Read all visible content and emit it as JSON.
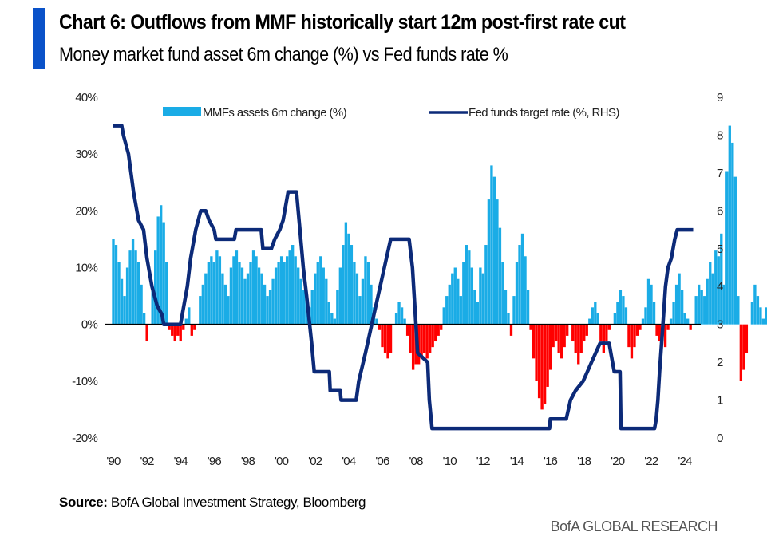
{
  "header": {
    "title": "Chart 6: Outflows from MMF historically start 12m post-first rate cut",
    "subtitle": "Money market fund asset 6m change (%) vs Fed funds rate %"
  },
  "footer": {
    "source_label": "Source:",
    "source_text": "BofA Global Investment Strategy, Bloomberg",
    "brand": "BofA GLOBAL RESEARCH"
  },
  "colors": {
    "accent": "#0a52c9",
    "bar_positive": "#1aace6",
    "bar_negative": "#ff0000",
    "line": "#0c2a78",
    "zero_line": "#000000"
  },
  "chart_data": {
    "type": "bar+line",
    "title": "Chart 6: Outflows from MMF historically start 12m post-first rate cut",
    "subtitle": "Money market fund asset 6m change (%) vs Fed funds rate %",
    "xlabel": "",
    "ylabel_left": "",
    "ylabel_right": "",
    "legend_position": "top",
    "grid": false,
    "x_range": [
      1990,
      2024.5
    ],
    "x_ticks": [
      "'90",
      "'92",
      "'94",
      "'96",
      "'98",
      "'00",
      "'02",
      "'04",
      "'06",
      "'08",
      "'10",
      "'12",
      "'14",
      "'16",
      "'18",
      "'20",
      "'22",
      "'24"
    ],
    "x_tick_values": [
      1990,
      1992,
      1994,
      1996,
      1998,
      2000,
      2002,
      2004,
      2006,
      2008,
      2010,
      2012,
      2014,
      2016,
      2018,
      2020,
      2022,
      2024
    ],
    "y_left": {
      "range": [
        -20,
        40
      ],
      "ticks": [
        40,
        30,
        20,
        10,
        0,
        -10,
        -20
      ],
      "tick_labels": [
        "40%",
        "30%",
        "20%",
        "10%",
        "0%",
        "-10%",
        "-20%"
      ]
    },
    "y_right": {
      "range": [
        0,
        9
      ],
      "ticks": [
        9,
        8,
        7,
        6,
        5,
        4,
        3,
        2,
        1,
        0
      ],
      "tick_labels": [
        "9",
        "8",
        "7",
        "6",
        "5",
        "4",
        "3",
        "2",
        "1",
        "0"
      ]
    },
    "series": [
      {
        "name": "MMFs assets 6m change (%)",
        "type": "bar",
        "axis": "left",
        "x_start": 1990.0,
        "x_step": 0.1667,
        "values": [
          15,
          14,
          11,
          8,
          5,
          10,
          13,
          15,
          13,
          11,
          7,
          2,
          -3,
          0,
          6,
          13,
          19,
          21,
          18,
          11,
          -1,
          -2,
          -3,
          -2,
          -3,
          -1,
          1,
          3,
          -2,
          -1,
          0,
          5,
          7,
          9,
          11,
          12,
          11,
          13,
          12,
          9,
          7,
          5,
          10,
          12,
          13,
          11,
          10,
          8,
          9,
          11,
          13,
          12,
          10,
          9,
          7,
          5,
          6,
          8,
          10,
          11,
          12,
          11,
          12,
          13,
          14,
          12,
          10,
          8,
          6,
          4,
          3,
          6,
          9,
          11,
          12,
          10,
          8,
          4,
          2,
          1,
          6,
          10,
          14,
          18,
          16,
          14,
          11,
          9,
          5,
          8,
          12,
          11,
          7,
          3,
          1,
          -1,
          -4,
          -5,
          -6,
          -5,
          0,
          2,
          4,
          3,
          1,
          -2,
          -5,
          -8,
          -7,
          -7,
          -6,
          -5,
          -6,
          -5,
          -4,
          -3,
          -2,
          -1,
          3,
          5,
          7,
          9,
          10,
          8,
          5,
          11,
          14,
          13,
          10,
          6,
          4,
          10,
          9,
          14,
          22,
          28,
          26,
          22,
          17,
          11,
          6,
          2,
          -2,
          5,
          11,
          14,
          16,
          12,
          6,
          -1,
          -6,
          -10,
          -13,
          -15,
          -14,
          -11,
          -8,
          -4,
          -3,
          -5,
          -6,
          -4,
          -2,
          0,
          -3,
          -5,
          -7,
          -5,
          -3,
          -2,
          1,
          3,
          4,
          2,
          -3,
          -5,
          -3,
          -1,
          0,
          2,
          4,
          6,
          5,
          3,
          -4,
          -6,
          -4,
          -2,
          -1,
          1,
          3,
          8,
          7,
          4,
          -2,
          -3,
          -2,
          -4,
          -1,
          1,
          4,
          7,
          9,
          6,
          2,
          1,
          -1,
          0,
          5,
          7,
          6,
          5,
          8,
          11,
          9,
          13,
          12,
          16,
          7,
          27,
          35,
          32,
          26,
          5,
          -10,
          -8,
          -5,
          0,
          4,
          7,
          5,
          3,
          1,
          3,
          2,
          -1,
          -3,
          -2,
          3,
          6,
          10,
          12,
          16,
          14,
          8,
          9
        ]
      },
      {
        "name": "Fed funds target rate (%, RHS)",
        "type": "line",
        "axis": "right",
        "points": [
          [
            1990.0,
            8.25
          ],
          [
            1990.5,
            8.25
          ],
          [
            1990.6,
            8.0
          ],
          [
            1990.9,
            7.5
          ],
          [
            1991.2,
            6.5
          ],
          [
            1991.5,
            5.75
          ],
          [
            1991.8,
            5.5
          ],
          [
            1992.0,
            4.75
          ],
          [
            1992.3,
            4.0
          ],
          [
            1992.6,
            3.5
          ],
          [
            1992.9,
            3.25
          ],
          [
            1993.0,
            3.0
          ],
          [
            1994.0,
            3.0
          ],
          [
            1994.2,
            3.5
          ],
          [
            1994.4,
            4.0
          ],
          [
            1994.6,
            4.75
          ],
          [
            1994.9,
            5.5
          ],
          [
            1995.2,
            6.0
          ],
          [
            1995.5,
            6.0
          ],
          [
            1995.7,
            5.75
          ],
          [
            1996.0,
            5.5
          ],
          [
            1996.1,
            5.25
          ],
          [
            1997.2,
            5.25
          ],
          [
            1997.3,
            5.5
          ],
          [
            1998.8,
            5.5
          ],
          [
            1998.9,
            5.0
          ],
          [
            1999.4,
            5.0
          ],
          [
            1999.6,
            5.25
          ],
          [
            1999.9,
            5.5
          ],
          [
            2000.1,
            5.75
          ],
          [
            2000.3,
            6.25
          ],
          [
            2000.4,
            6.5
          ],
          [
            2000.9,
            6.5
          ],
          [
            2001.1,
            5.5
          ],
          [
            2001.3,
            4.5
          ],
          [
            2001.5,
            3.75
          ],
          [
            2001.8,
            2.5
          ],
          [
            2001.95,
            1.75
          ],
          [
            2002.85,
            1.75
          ],
          [
            2002.9,
            1.25
          ],
          [
            2003.5,
            1.25
          ],
          [
            2003.55,
            1.0
          ],
          [
            2004.45,
            1.0
          ],
          [
            2004.6,
            1.5
          ],
          [
            2005.0,
            2.25
          ],
          [
            2005.5,
            3.25
          ],
          [
            2006.0,
            4.25
          ],
          [
            2006.5,
            5.25
          ],
          [
            2007.6,
            5.25
          ],
          [
            2007.8,
            4.5
          ],
          [
            2008.0,
            3.0
          ],
          [
            2008.1,
            2.25
          ],
          [
            2008.7,
            2.0
          ],
          [
            2008.8,
            1.0
          ],
          [
            2008.96,
            0.25
          ],
          [
            2015.95,
            0.25
          ],
          [
            2016.0,
            0.5
          ],
          [
            2016.95,
            0.5
          ],
          [
            2017.2,
            1.0
          ],
          [
            2017.5,
            1.25
          ],
          [
            2017.95,
            1.5
          ],
          [
            2018.2,
            1.75
          ],
          [
            2018.45,
            2.0
          ],
          [
            2018.7,
            2.25
          ],
          [
            2018.95,
            2.5
          ],
          [
            2019.5,
            2.5
          ],
          [
            2019.6,
            2.25
          ],
          [
            2019.8,
            1.75
          ],
          [
            2020.15,
            1.75
          ],
          [
            2020.2,
            0.25
          ],
          [
            2022.2,
            0.25
          ],
          [
            2022.3,
            0.5
          ],
          [
            2022.4,
            1.0
          ],
          [
            2022.5,
            1.75
          ],
          [
            2022.7,
            3.0
          ],
          [
            2022.85,
            4.0
          ],
          [
            2023.0,
            4.5
          ],
          [
            2023.2,
            4.75
          ],
          [
            2023.4,
            5.25
          ],
          [
            2023.55,
            5.5
          ],
          [
            2024.5,
            5.5
          ]
        ]
      }
    ]
  }
}
